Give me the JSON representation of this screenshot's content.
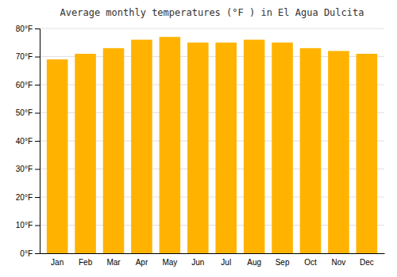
{
  "chart_data": {
    "type": "bar",
    "title": "Average monthly temperatures (°F ) in El Agua Dulcita",
    "categories": [
      "Jan",
      "Feb",
      "Mar",
      "Apr",
      "May",
      "Jun",
      "Jul",
      "Aug",
      "Sep",
      "Oct",
      "Nov",
      "Dec"
    ],
    "values": [
      69,
      71,
      73,
      76,
      77,
      75,
      75,
      76,
      75,
      73,
      72,
      71
    ],
    "color": "#FFB300",
    "ylim": [
      0,
      80
    ],
    "yticks": [
      {
        "value": 0,
        "label": "0°F"
      },
      {
        "value": 10,
        "label": "10°F"
      },
      {
        "value": 20,
        "label": "20°F"
      },
      {
        "value": 30,
        "label": "30°F"
      },
      {
        "value": 40,
        "label": "40°F"
      },
      {
        "value": 50,
        "label": "50°F"
      },
      {
        "value": 60,
        "label": "60°F"
      },
      {
        "value": 70,
        "label": "70°F"
      },
      {
        "value": 80,
        "label": "80°F"
      }
    ],
    "grid": true
  }
}
